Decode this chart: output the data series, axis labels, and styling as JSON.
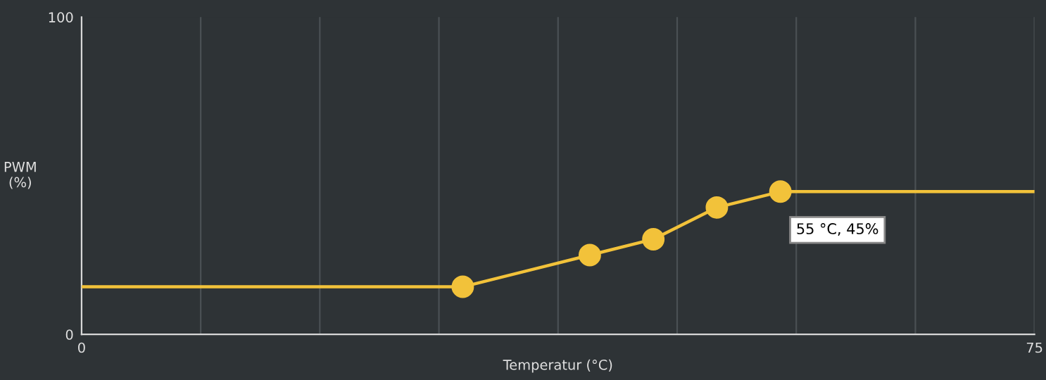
{
  "chart_data": {
    "type": "line",
    "xlabel": "Temperatur (°C)",
    "ylabel": "PWM\n(%)",
    "series": [
      {
        "color": "#f2c23a",
        "marker": "none",
        "x": [
          0,
          30,
          40,
          45,
          50,
          55,
          75
        ],
        "values": [
          15,
          15,
          25,
          30,
          40,
          45,
          45
        ]
      },
      {
        "type": "scatter",
        "color": "#f2c23a",
        "marker": "circle",
        "x": [
          30,
          40,
          45,
          50,
          55
        ],
        "values": [
          15,
          25,
          30,
          40,
          45
        ]
      }
    ],
    "xlim": [
      0,
      75
    ],
    "ylim": [
      0,
      100
    ],
    "xticks": [
      0,
      {
        "value": 9.375,
        "label": null
      },
      {
        "value": 18.75,
        "label": null
      },
      {
        "value": 28.125,
        "label": null
      },
      {
        "value": 37.5,
        "label": null
      },
      {
        "value": 46.875,
        "label": null
      },
      {
        "value": 56.25,
        "label": null
      },
      {
        "value": 65.625,
        "label": null
      },
      75
    ],
    "yticks": [
      0,
      100
    ],
    "grid": "x",
    "annotations": [
      {
        "text": "55 °C, 45%",
        "x": 55,
        "y": 45
      }
    ]
  }
}
